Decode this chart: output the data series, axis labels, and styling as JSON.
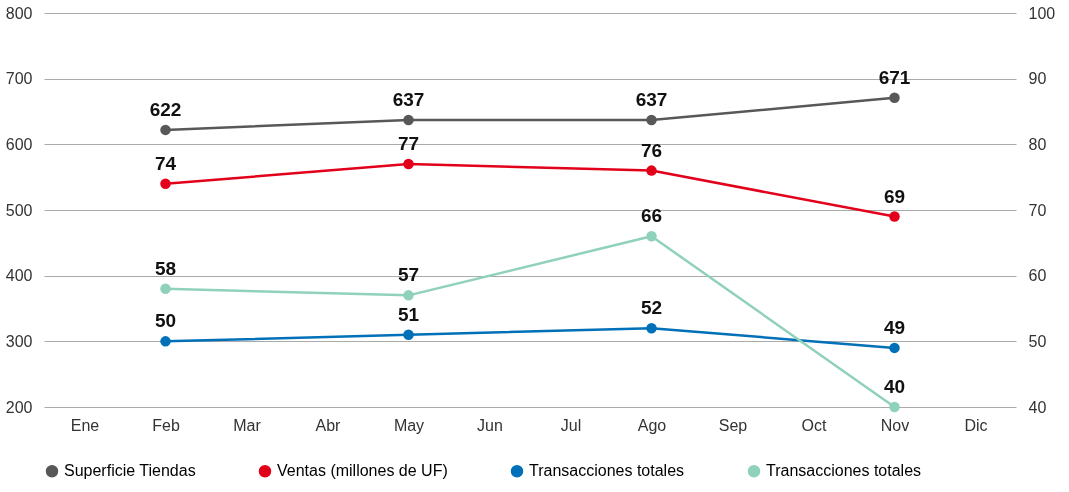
{
  "chart_data": {
    "type": "line",
    "categories": [
      "Ene",
      "Feb",
      "Mar",
      "Abr",
      "May",
      "Jun",
      "Jul",
      "Ago",
      "Sep",
      "Oct",
      "Nov",
      "Dic"
    ],
    "series": [
      {
        "name": "Superficie Tiendas",
        "color": "#58585a",
        "x": [
          "Feb",
          "May",
          "Ago",
          "Nov"
        ],
        "values": [
          622,
          637,
          637,
          671
        ]
      },
      {
        "name": "Ventas (millones de UF)",
        "color": "#e2001a",
        "x": [
          "Feb",
          "May",
          "Ago",
          "Nov"
        ],
        "values": [
          74,
          77,
          76,
          69
        ],
        "axis": "y2"
      },
      {
        "name": "Transacciones totales",
        "color": "#0070b8",
        "x": [
          "Feb",
          "May",
          "Ago",
          "Nov"
        ],
        "values": [
          50,
          51,
          52,
          49
        ],
        "axis": "y2"
      },
      {
        "name": "Transacciones totales",
        "color": "#8fd1bb",
        "x": [
          "Feb",
          "May",
          "Ago",
          "Nov"
        ],
        "values": [
          58,
          57,
          66,
          40
        ],
        "axis": "y2"
      }
    ],
    "ylim": [
      200,
      800
    ],
    "yticks": [
      200,
      300,
      400,
      500,
      600,
      700,
      800
    ],
    "y2lim": [
      40,
      100
    ],
    "y2ticks": [
      40,
      50,
      60,
      70,
      80,
      90,
      100
    ],
    "grid": "y",
    "legend": "bottom",
    "marker": "circle",
    "line_style": "solid",
    "data_labels": true
  }
}
